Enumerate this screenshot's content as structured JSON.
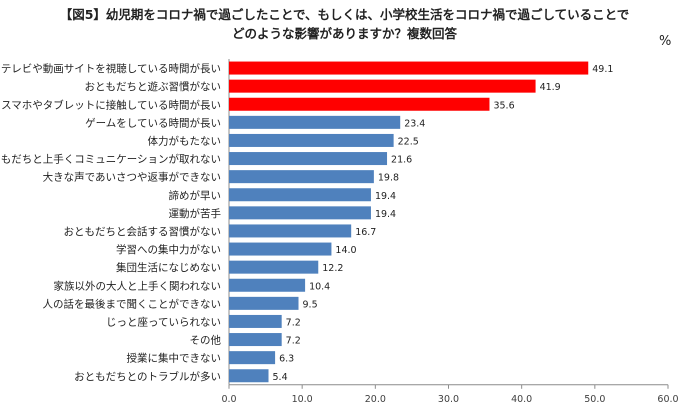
{
  "title_line1": "【図5】幼児期をコロナ禍で過ごしたことで、もしくは、小学校生活をコロナ禍で過ごしていることで",
  "title_line2": "どのような影響がありますか？複数回答",
  "unit": "%",
  "chart_data": {
    "type": "bar",
    "orientation": "horizontal",
    "title": "【図5】幼児期をコロナ禍で過ごしたことで、もしくは、小学校生活をコロナ禍で過ごしていることで どのような影響がありますか？複数回答",
    "xlabel": "%",
    "ylabel": "",
    "xlim": [
      0,
      60
    ],
    "xticks": [
      "0.0",
      "10.0",
      "20.0",
      "30.0",
      "40.0",
      "50.0",
      "60.0"
    ],
    "grid": false,
    "categories": [
      "テレビや動画サイトを視聴している時間が長い",
      "おともだちと遊ぶ習慣がない",
      "スマホやタブレットに接触している時間が長い",
      "ゲームをしている時間が長い",
      "体力がもたない",
      "おともだちと上手くコミュニケーションが取れない",
      "大きな声であいさつや返事ができない",
      "諦めが早い",
      "運動が苦手",
      "おともだちと会話する習慣がない",
      "学習への集中力がない",
      "集団生活になじめない",
      "家族以外の大人と上手く関われない",
      "人の話を最後まで聞くことができない",
      "じっと座っていられない",
      "その他",
      "授業に集中できない",
      "おともだちとのトラブルが多い"
    ],
    "values": [
      49.1,
      41.9,
      35.6,
      23.4,
      22.5,
      21.6,
      19.8,
      19.4,
      19.4,
      16.7,
      14.0,
      12.2,
      10.4,
      9.5,
      7.2,
      7.2,
      6.3,
      5.4
    ],
    "value_labels": [
      "49.1",
      "41.9",
      "35.6",
      "23.4",
      "22.5",
      "21.6",
      "19.8",
      "19.4",
      "19.4",
      "16.7",
      "14.0",
      "12.2",
      "10.4",
      "9.5",
      "7.2",
      "7.2",
      "6.3",
      "5.4"
    ],
    "highlight_count": 3,
    "colors": {
      "highlight": "#ff0000",
      "default": "#4f81bd",
      "axis": "#8c8c8c"
    }
  }
}
